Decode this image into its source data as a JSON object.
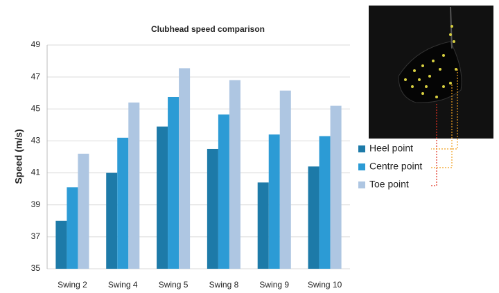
{
  "chart_data": {
    "type": "bar",
    "title": "Clubhead speed comparison",
    "y_label": "Speed (m/s)",
    "categories": [
      "Swing 2",
      "Swing 4",
      "Swing 5",
      "Swing 8",
      "Swing 9",
      "Swing 10"
    ],
    "series": [
      {
        "name": "Heel point",
        "color": "#1d7aa8",
        "values": [
          38.0,
          41.0,
          43.9,
          42.5,
          40.4,
          41.4
        ]
      },
      {
        "name": "Centre point",
        "color": "#2c9bd5",
        "values": [
          40.1,
          43.2,
          45.75,
          44.65,
          43.4,
          43.3
        ]
      },
      {
        "name": "Toe point",
        "color": "#aec6e2",
        "values": [
          42.2,
          45.4,
          47.55,
          46.8,
          46.15,
          45.2
        ]
      }
    ],
    "ylim": [
      35,
      49
    ],
    "yticks": [
      35,
      37,
      39,
      41,
      43,
      45,
      47,
      49
    ],
    "grid": true,
    "legend": "right"
  }
}
